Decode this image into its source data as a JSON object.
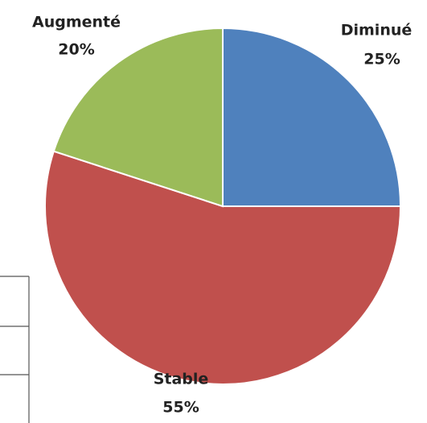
{
  "chart_data": {
    "type": "pie",
    "categories": [
      "Diminué",
      "Stable",
      "Augmenté"
    ],
    "values": [
      25,
      55,
      20
    ],
    "value_labels": [
      "25%",
      "55%",
      "20%"
    ],
    "colors": [
      "#4f81bd",
      "#c0504d",
      "#9bbb59"
    ]
  }
}
